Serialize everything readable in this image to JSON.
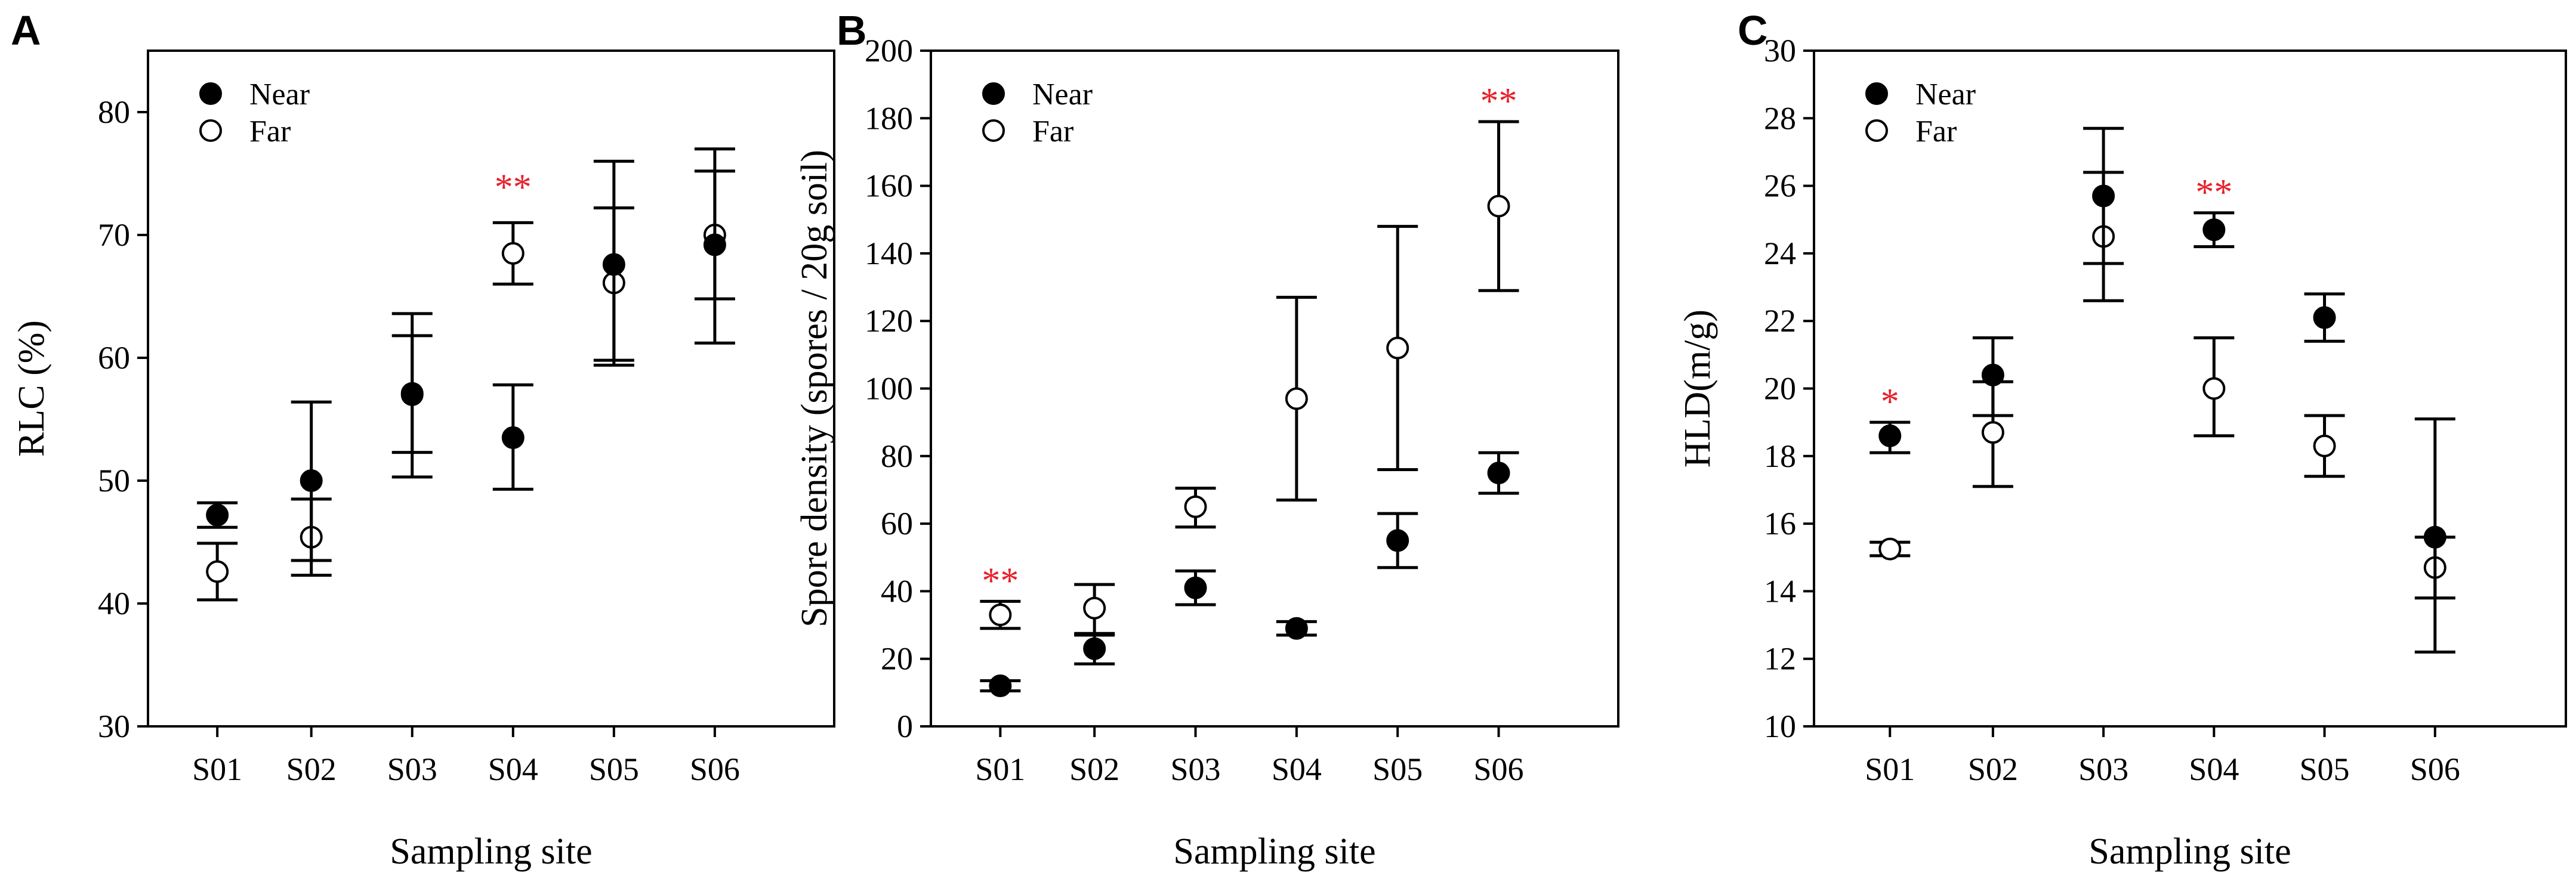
{
  "colors": {
    "axis": "#000000",
    "near_fill": "#000000",
    "far_fill": "#ffffff",
    "significance": "#e8202a"
  },
  "chart_data": [
    {
      "type": "scatter",
      "panel_label": "A",
      "xlabel": "Sampling site",
      "ylabel": "RLC (%)",
      "categories": [
        "S01",
        "S02",
        "S03",
        "S04",
        "S05",
        "S06"
      ],
      "ylim": [
        30,
        85
      ],
      "yticks": [
        30,
        40,
        50,
        60,
        70,
        80
      ],
      "legend": {
        "position": "top-left",
        "entries": [
          "Near",
          "Far"
        ]
      },
      "series": [
        {
          "name": "Near",
          "marker": "filled-circle",
          "values": [
            47.2,
            50.0,
            57.0,
            53.5,
            67.6,
            69.2
          ],
          "lower": [
            46.2,
            43.5,
            52.3,
            49.3,
            59.8,
            61.2
          ],
          "upper": [
            48.2,
            56.4,
            61.8,
            57.8,
            72.2,
            75.2
          ]
        },
        {
          "name": "Far",
          "marker": "open-circle",
          "values": [
            42.6,
            45.4,
            57.1,
            68.5,
            66.1,
            70.0
          ],
          "lower": [
            40.3,
            42.3,
            50.3,
            66.0,
            59.4,
            64.8
          ],
          "upper": [
            44.9,
            48.5,
            63.6,
            71.0,
            76.0,
            77.0
          ]
        }
      ],
      "annotations": [
        {
          "category": "S04",
          "text": "**",
          "y": 72.2
        }
      ]
    },
    {
      "type": "scatter",
      "panel_label": "B",
      "xlabel": "Sampling site",
      "ylabel": "Spore density (spores / 20g soil)",
      "categories": [
        "S01",
        "S02",
        "S03",
        "S04",
        "S05",
        "S06"
      ],
      "ylim": [
        0,
        200
      ],
      "yticks": [
        0,
        20,
        40,
        60,
        80,
        100,
        120,
        140,
        160,
        180,
        200
      ],
      "legend": {
        "position": "top-left",
        "entries": [
          "Near",
          "Far"
        ]
      },
      "series": [
        {
          "name": "Near",
          "marker": "filled-circle",
          "values": [
            12,
            23,
            41,
            29,
            55,
            75
          ],
          "lower": [
            10.5,
            18.5,
            36,
            27,
            47,
            69
          ],
          "upper": [
            13.5,
            27.5,
            46,
            31,
            63,
            81
          ]
        },
        {
          "name": "Far",
          "marker": "open-circle",
          "values": [
            33,
            35,
            65,
            97,
            112,
            154
          ],
          "lower": [
            29,
            27,
            59,
            67,
            76,
            129
          ],
          "upper": [
            37,
            42,
            70.5,
            127,
            148,
            179
          ]
        }
      ],
      "annotations": [
        {
          "category": "S01",
          "text": "**",
          "y": 37
        },
        {
          "category": "S06",
          "text": "**",
          "y": 179
        }
      ]
    },
    {
      "type": "scatter",
      "panel_label": "C",
      "xlabel": "Sampling site",
      "ylabel": "HLD(m/g)",
      "categories": [
        "S01",
        "S02",
        "S03",
        "S04",
        "S05",
        "S06"
      ],
      "ylim": [
        10,
        30
      ],
      "yticks": [
        10,
        12,
        14,
        16,
        18,
        20,
        22,
        24,
        26,
        28,
        30
      ],
      "legend": {
        "position": "top-left",
        "entries": [
          "Near",
          "Far"
        ]
      },
      "series": [
        {
          "name": "Near",
          "marker": "filled-circle",
          "values": [
            18.6,
            20.4,
            25.7,
            24.7,
            22.1,
            15.6
          ],
          "lower": [
            18.1,
            19.2,
            23.7,
            24.2,
            21.4,
            12.2
          ],
          "upper": [
            19.0,
            21.5,
            27.7,
            25.2,
            22.8,
            19.1
          ]
        },
        {
          "name": "Far",
          "marker": "open-circle",
          "values": [
            15.25,
            18.7,
            24.5,
            20.0,
            18.3,
            14.7
          ],
          "lower": [
            15.05,
            17.1,
            22.6,
            18.6,
            17.4,
            13.8
          ],
          "upper": [
            15.45,
            20.2,
            26.4,
            21.5,
            19.2,
            15.6
          ]
        }
      ],
      "annotations": [
        {
          "category": "S01",
          "text": "*",
          "y": 19.0
        },
        {
          "category": "S04",
          "text": "**",
          "y": 25.2
        }
      ]
    }
  ]
}
